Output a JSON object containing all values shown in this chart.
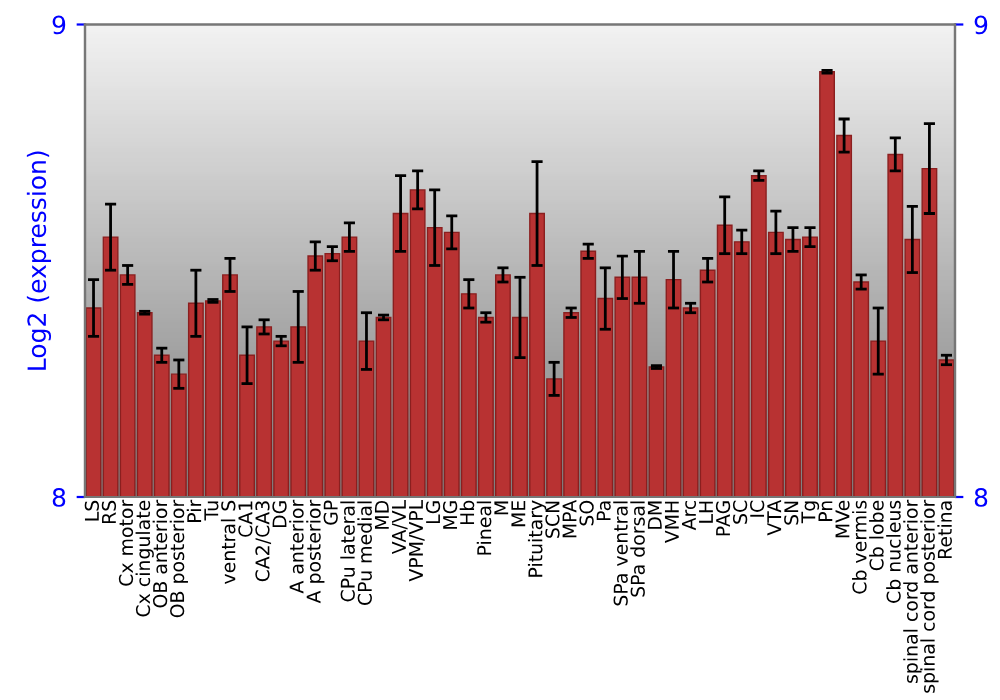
{
  "chart_data": {
    "type": "bar",
    "ylabel": "Log2 (expression)",
    "categories": [
      "LS",
      "RS",
      "Cx motor",
      "Cx cingulate",
      "OB anterior",
      "OB posterior",
      "Pir",
      "Tu",
      "ventral S",
      "CA1",
      "CA2/CA3",
      "DG",
      "A anterior",
      "A posterior",
      "GP",
      "CPu lateral",
      "CPu medial",
      "MD",
      "VA/VL",
      "VPM/VPL",
      "LG",
      "MG",
      "Hb",
      "Pineal",
      "M",
      "ME",
      "Pituitary",
      "SCN",
      "MPA",
      "SO",
      "Pa",
      "SPa ventral",
      "SPa dorsal",
      "DM",
      "VMH",
      "Arc",
      "LH",
      "PAG",
      "SC",
      "IC",
      "VTA",
      "SN",
      "Tg",
      "Pn",
      "MVe",
      "Cb vermis",
      "Cb lobe",
      "Cb nucleus",
      "spinal cord anterior",
      "spinal cord posterior",
      "Retina"
    ],
    "values": [
      8.4,
      8.55,
      8.47,
      8.39,
      8.3,
      8.26,
      8.41,
      8.415,
      8.47,
      8.3,
      8.36,
      8.33,
      8.36,
      8.51,
      8.515,
      8.55,
      8.33,
      8.38,
      8.6,
      8.65,
      8.57,
      8.56,
      8.43,
      8.38,
      8.47,
      8.38,
      8.6,
      8.25,
      8.39,
      8.52,
      8.42,
      8.465,
      8.465,
      8.275,
      8.46,
      8.4,
      8.48,
      8.575,
      8.54,
      8.68,
      8.56,
      8.545,
      8.55,
      8.9,
      8.765,
      8.455,
      8.33,
      8.725,
      8.545,
      8.695,
      8.29
    ],
    "errors": [
      0.06,
      0.07,
      0.02,
      0.003,
      0.015,
      0.03,
      0.07,
      0.003,
      0.035,
      0.06,
      0.015,
      0.01,
      0.075,
      0.03,
      0.015,
      0.03,
      0.06,
      0.005,
      0.08,
      0.04,
      0.08,
      0.035,
      0.03,
      0.01,
      0.015,
      0.085,
      0.11,
      0.035,
      0.01,
      0.015,
      0.065,
      0.045,
      0.055,
      0.003,
      0.06,
      0.01,
      0.025,
      0.06,
      0.025,
      0.01,
      0.045,
      0.025,
      0.02,
      0.003,
      0.035,
      0.015,
      0.07,
      0.035,
      0.07,
      0.095,
      0.01
    ],
    "color": "#b83232",
    "ylim": [
      8,
      9
    ],
    "yticks": [
      8,
      9
    ],
    "y2lim": [
      8,
      9
    ],
    "y2ticks": [
      8,
      9
    ],
    "grid": false
  }
}
